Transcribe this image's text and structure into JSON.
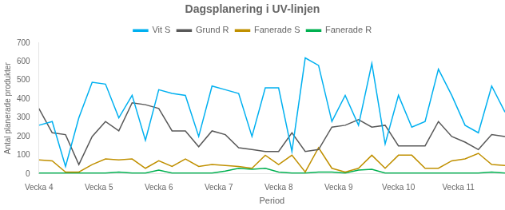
{
  "chart_data": {
    "type": "line",
    "title": "Dagsplanering i UV-linjen",
    "xlabel": "Period",
    "ylabel": "Antal planerade produkter",
    "x": [
      0,
      1,
      2,
      3,
      4,
      5,
      6,
      7,
      8,
      9,
      10,
      11,
      12,
      13,
      14,
      15,
      16,
      17,
      18,
      19,
      20,
      21,
      22,
      23,
      24,
      25,
      26,
      27,
      28,
      29,
      30,
      31,
      32,
      33,
      34,
      35
    ],
    "xlim": [
      0,
      35
    ],
    "xticks": [
      {
        "value": 0,
        "label": "Vecka 4"
      },
      {
        "value": 4.5,
        "label": "Vecka 5"
      },
      {
        "value": 9,
        "label": "Vecka 6"
      },
      {
        "value": 13.5,
        "label": "Vecka 7"
      },
      {
        "value": 18,
        "label": "Vecka 8"
      },
      {
        "value": 22.5,
        "label": "Vecka 9"
      },
      {
        "value": 27,
        "label": "Vecka 10"
      },
      {
        "value": 31.5,
        "label": "Vecka 11"
      }
    ],
    "ylim": [
      0,
      700
    ],
    "yticks": [
      0,
      100,
      200,
      300,
      400,
      500,
      600,
      700
    ],
    "series": [
      {
        "name": "Vit S",
        "color": "#00B0F0",
        "values": [
          260,
          280,
          40,
          300,
          490,
          480,
          300,
          420,
          180,
          450,
          430,
          420,
          200,
          470,
          450,
          430,
          200,
          460,
          460,
          120,
          620,
          580,
          280,
          420,
          260,
          590,
          160,
          420,
          250,
          280,
          560,
          420,
          260,
          220,
          470,
          330
        ]
      },
      {
        "name": "Grund R",
        "color": "#595959",
        "values": [
          350,
          220,
          210,
          50,
          200,
          280,
          230,
          380,
          370,
          350,
          230,
          230,
          145,
          230,
          210,
          140,
          130,
          120,
          120,
          220,
          120,
          130,
          250,
          260,
          290,
          250,
          260,
          150,
          150,
          150,
          280,
          200,
          170,
          130,
          210,
          200
        ]
      },
      {
        "name": "Fanerade S",
        "color": "#C09000",
        "values": [
          75,
          70,
          10,
          10,
          50,
          80,
          75,
          80,
          30,
          70,
          40,
          80,
          40,
          50,
          45,
          40,
          30,
          100,
          50,
          100,
          10,
          140,
          30,
          10,
          30,
          100,
          30,
          100,
          100,
          30,
          30,
          70,
          80,
          110,
          50,
          45
        ]
      },
      {
        "name": "Fanerade R",
        "color": "#00B050",
        "values": [
          5,
          5,
          5,
          5,
          5,
          5,
          10,
          5,
          5,
          20,
          5,
          5,
          5,
          5,
          15,
          30,
          25,
          30,
          10,
          5,
          5,
          10,
          10,
          5,
          20,
          25,
          5,
          5,
          5,
          5,
          5,
          5,
          5,
          5,
          10,
          5
        ]
      }
    ],
    "grid": false,
    "legend": "top"
  }
}
